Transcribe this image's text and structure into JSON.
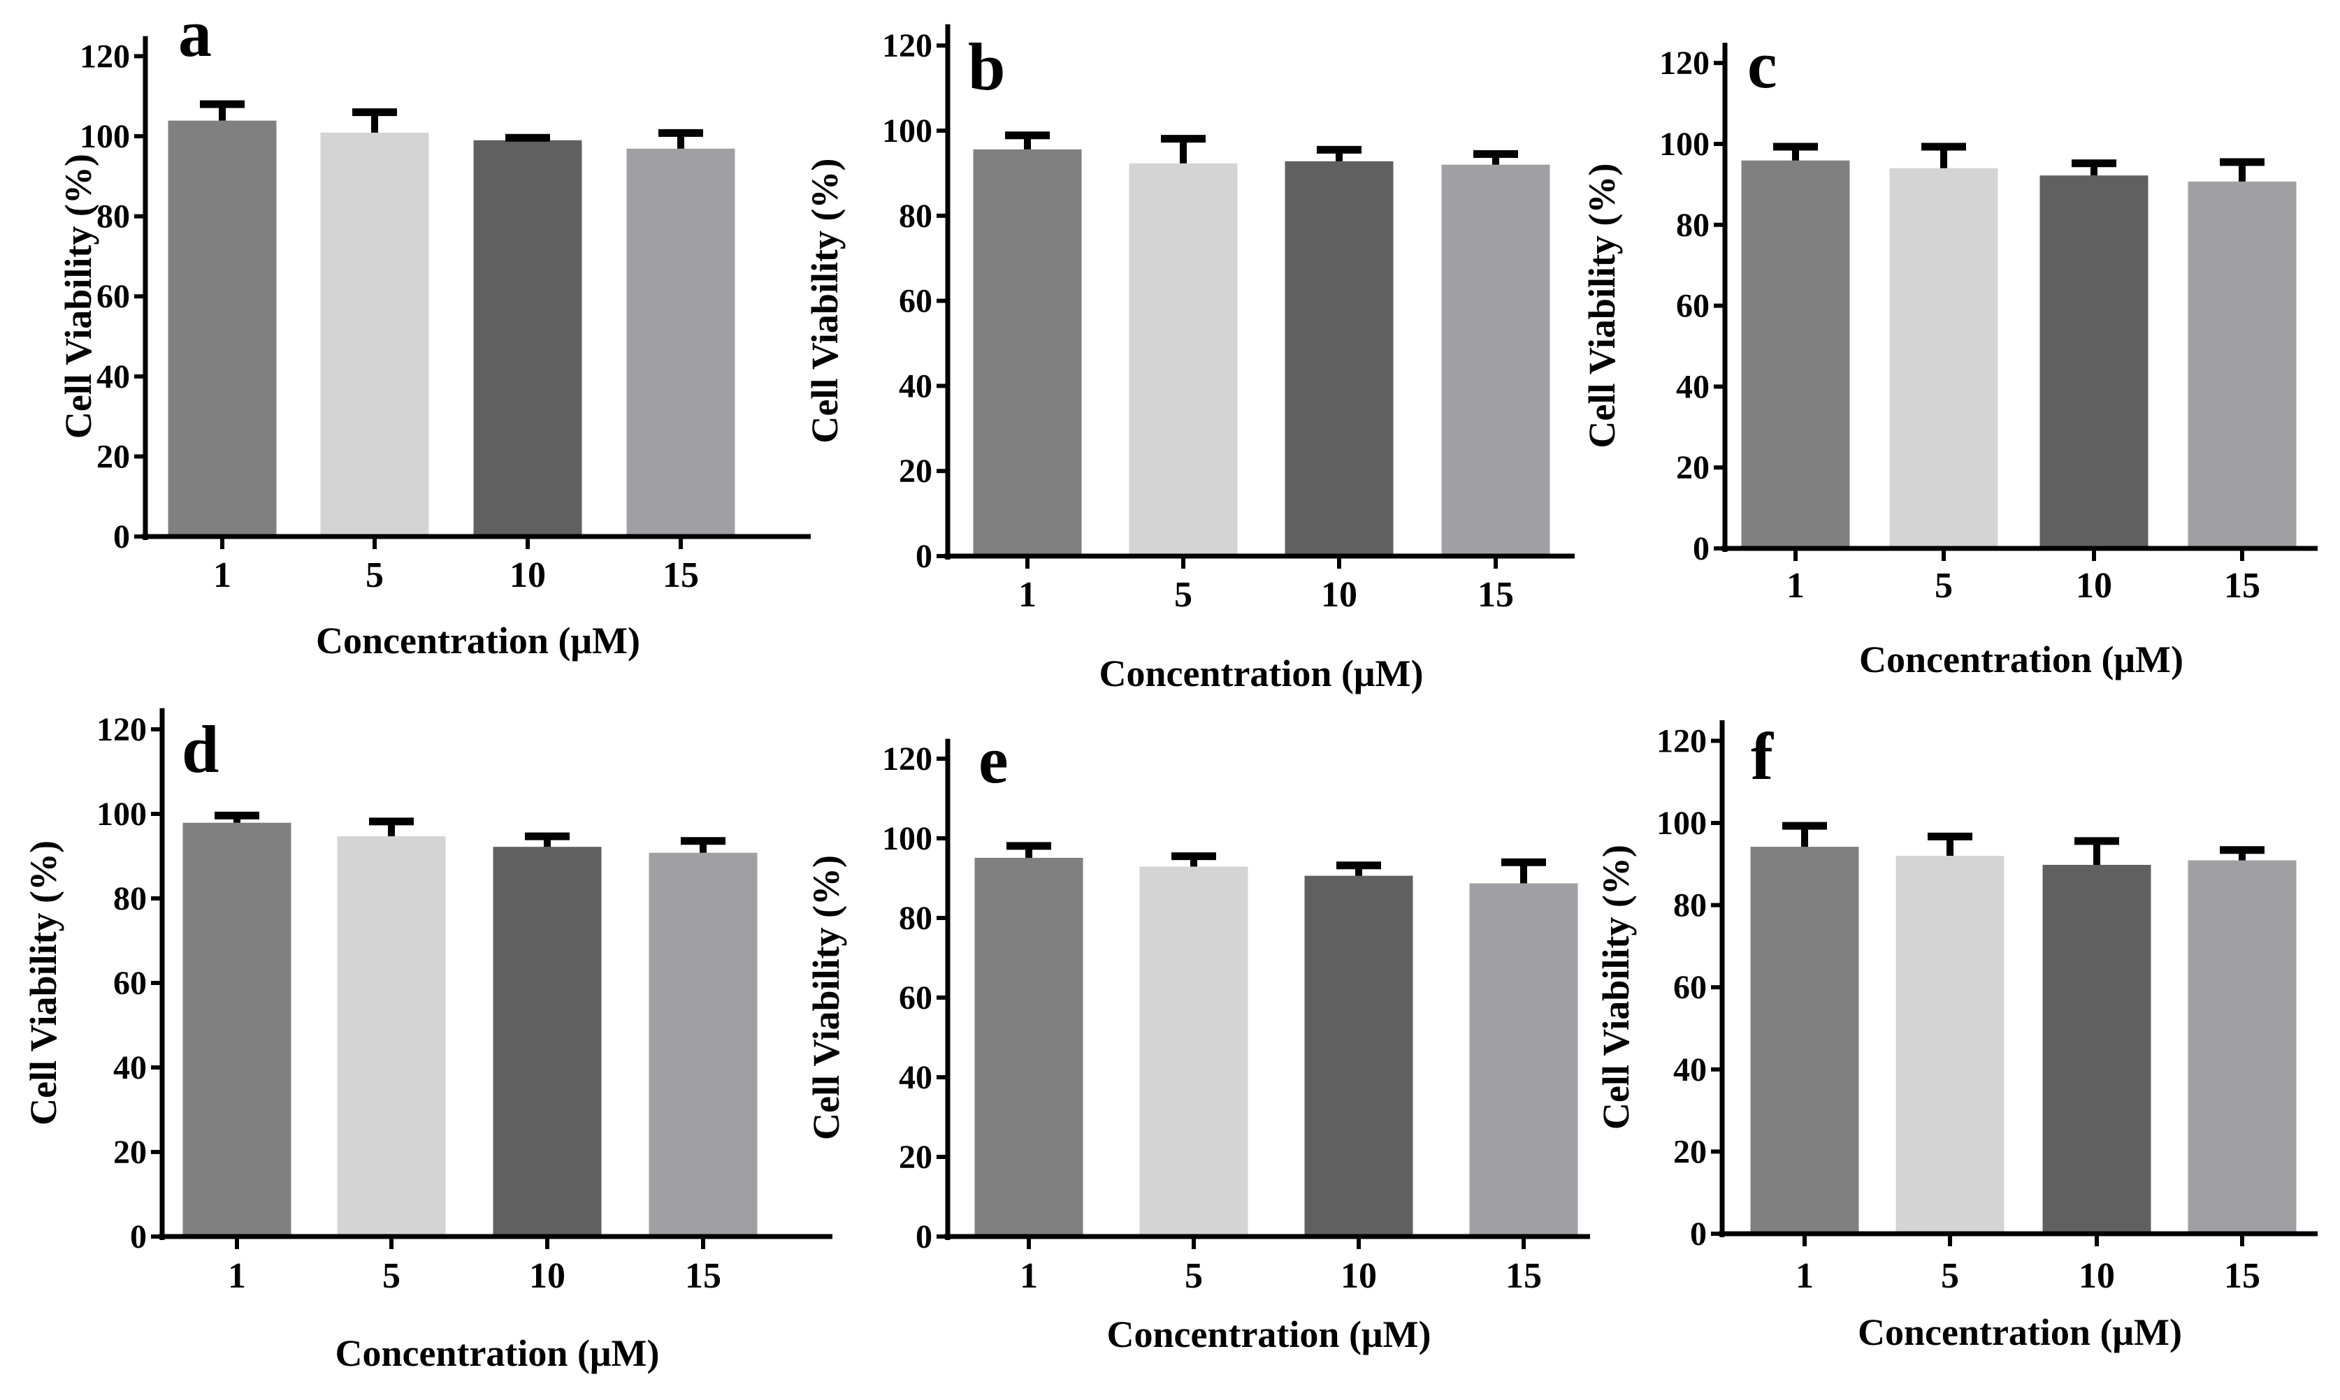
{
  "colors": [
    "#808080",
    "#d4d4d4",
    "#606060",
    "#a0a0a4"
  ],
  "chart_data": [
    {
      "type": "bar",
      "panel": "a",
      "categories": [
        "1",
        "5",
        "10",
        "15"
      ],
      "values": [
        103.9,
        100.9,
        99.0,
        96.9
      ],
      "error": [
        4.1,
        5.1,
        0.6,
        3.9
      ],
      "xlabel": "Concentration (μM)",
      "ylabel": "Cell Viability (%)",
      "ylim": [
        0,
        120
      ],
      "yticks": [
        0,
        20,
        40,
        60,
        80,
        100,
        120
      ]
    },
    {
      "type": "bar",
      "panel": "b",
      "categories": [
        "1",
        "5",
        "10",
        "15"
      ],
      "values": [
        95.6,
        92.3,
        92.8,
        92.0
      ],
      "error": [
        3.3,
        5.8,
        2.7,
        2.5
      ],
      "xlabel": "Concentration (μM)",
      "ylabel": "Cell Viability (%)",
      "ylim": [
        0,
        120
      ],
      "yticks": [
        0,
        20,
        40,
        60,
        80,
        100,
        120
      ]
    },
    {
      "type": "bar",
      "panel": "c",
      "categories": [
        "1",
        "5",
        "10",
        "15"
      ],
      "values": [
        95.9,
        94.0,
        92.2,
        90.7
      ],
      "error": [
        3.4,
        5.3,
        3.0,
        4.8
      ],
      "xlabel": "Concentration (μM)",
      "ylabel": "Cell Viability (%)",
      "ylim": [
        0,
        120
      ],
      "yticks": [
        0,
        20,
        40,
        60,
        80,
        100,
        120
      ]
    },
    {
      "type": "bar",
      "panel": "d",
      "categories": [
        "1",
        "5",
        "10",
        "15"
      ],
      "values": [
        97.9,
        94.7,
        92.2,
        90.8
      ],
      "error": [
        1.7,
        3.5,
        2.5,
        2.8
      ],
      "xlabel": "Concentration (μM)",
      "ylabel": "Cell Viability (%)",
      "ylim": [
        0,
        120
      ],
      "yticks": [
        0,
        20,
        40,
        60,
        80,
        100,
        120
      ]
    },
    {
      "type": "bar",
      "panel": "e",
      "categories": [
        "1",
        "5",
        "10",
        "15"
      ],
      "values": [
        95.1,
        92.9,
        90.6,
        88.7
      ],
      "error": [
        3.0,
        2.6,
        2.6,
        5.3
      ],
      "xlabel": "Concentration (μM)",
      "ylabel": "Cell Viability (%)",
      "ylim": [
        0,
        120
      ],
      "yticks": [
        0,
        20,
        40,
        60,
        80,
        100,
        120
      ]
    },
    {
      "type": "bar",
      "panel": "f",
      "categories": [
        "1",
        "5",
        "10",
        "15"
      ],
      "values": [
        94.2,
        92.0,
        89.8,
        90.9
      ],
      "error": [
        5.1,
        4.7,
        5.8,
        2.5
      ],
      "xlabel": "Concentration (μM)",
      "ylabel": "Cell Viability (%)",
      "ylim": [
        0,
        120
      ],
      "yticks": [
        0,
        20,
        40,
        60,
        80,
        100,
        120
      ]
    }
  ]
}
